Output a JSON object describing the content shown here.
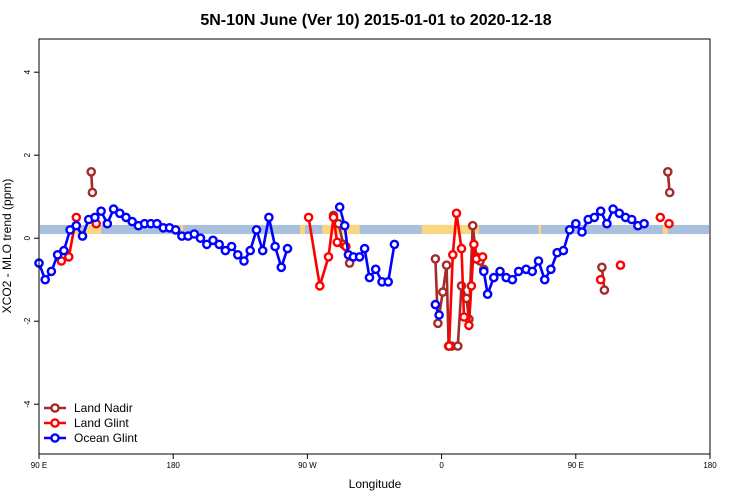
{
  "chart_data": {
    "type": "line",
    "title": "5N-10N June (Ver 10)   2015-01-01 to 2020-12-18",
    "xlabel": "Longitude",
    "ylabel": "XCO2 - MLO trend (ppm)",
    "xlim": [
      -90,
      180
    ],
    "ylim": [
      -5.2,
      4.8
    ],
    "x_ticks": [
      {
        "value": -90,
        "label": "90 E"
      },
      {
        "value": -36,
        "label": "180"
      },
      {
        "value": 18,
        "label": "90 W"
      },
      {
        "value": 72,
        "label": "0"
      },
      {
        "value": 126,
        "label": "90 E"
      },
      {
        "value": 180,
        "label": "180"
      }
    ],
    "y_ticks": [
      -4,
      -2,
      0,
      2,
      4
    ],
    "band": {
      "y_range": [
        0.1,
        0.32
      ],
      "color": "#a9c0dc",
      "highlight_color": "#fdd77a",
      "highlight_ranges": [
        [
          -76,
          -73
        ],
        [
          -71,
          -65
        ],
        [
          -34,
          -32
        ],
        [
          15,
          17
        ],
        [
          24,
          39
        ],
        [
          64,
          87
        ],
        [
          111,
          112
        ],
        [
          161,
          163
        ]
      ]
    },
    "legend": {
      "position": "bottom-left"
    },
    "series": [
      {
        "name": "Land Nadir",
        "color": "#a52a2a",
        "segments": [
          [
            [
              -69,
              1.6
            ],
            [
              -68.5,
              1.1
            ]
          ],
          [
            [
              28.5,
              0.55
            ],
            [
              30.5,
              0.35
            ],
            [
              32.5,
              -0.15
            ],
            [
              35,
              -0.6
            ]
          ],
          [
            [
              69.5,
              -0.5
            ],
            [
              70.5,
              -2.05
            ],
            [
              72.5,
              -1.3
            ],
            [
              74,
              -0.65
            ],
            [
              74.8,
              -2.6
            ],
            [
              76,
              -2.6
            ],
            [
              78.5,
              -2.6
            ],
            [
              80,
              -1.15
            ],
            [
              82,
              -1.45
            ],
            [
              83,
              -1.95
            ],
            [
              84.5,
              0.3
            ],
            [
              86,
              -0.45
            ],
            [
              87.5,
              -0.55
            ],
            [
              89,
              -0.75
            ]
          ],
          [
            [
              136.5,
              -0.7
            ],
            [
              137.5,
              -1.25
            ]
          ],
          [
            [
              163,
              1.6
            ],
            [
              163.8,
              1.1
            ]
          ]
        ]
      },
      {
        "name": "Land Glint",
        "color": "#ff0000",
        "segments": [
          [
            [
              -81,
              -0.55
            ],
            [
              -78,
              -0.45
            ],
            [
              -75,
              0.5
            ]
          ],
          [
            [
              -67,
              0.35
            ]
          ],
          [
            [
              18.5,
              0.5
            ],
            [
              23,
              -1.15
            ],
            [
              26.5,
              -0.45
            ],
            [
              28.5,
              0.5
            ],
            [
              30,
              -0.1
            ],
            [
              33.5,
              -0.2
            ]
          ],
          [
            [
              75,
              -2.6
            ],
            [
              76.5,
              -0.4
            ],
            [
              78,
              0.6
            ],
            [
              80,
              -0.25
            ],
            [
              81,
              -1.9
            ],
            [
              83,
              -2.1
            ],
            [
              84,
              -1.15
            ],
            [
              85,
              -0.15
            ],
            [
              86,
              -0.5
            ],
            [
              88.5,
              -0.45
            ]
          ],
          [
            [
              136,
              -1.0
            ]
          ],
          [
            [
              144,
              -0.65
            ]
          ],
          [
            [
              160,
              0.5
            ]
          ],
          [
            [
              163.5,
              0.35
            ]
          ]
        ]
      },
      {
        "name": "Ocean Glint",
        "color": "#0000ff",
        "segments": [
          [
            [
              -90,
              -0.6
            ],
            [
              -87.5,
              -1.0
            ],
            [
              -85,
              -0.8
            ],
            [
              -82.5,
              -0.4
            ],
            [
              -80,
              -0.3
            ],
            [
              -77.5,
              0.2
            ],
            [
              -75,
              0.3
            ],
            [
              -72.5,
              0.05
            ],
            [
              -70,
              0.45
            ],
            [
              -67.5,
              0.5
            ],
            [
              -65,
              0.65
            ],
            [
              -62.5,
              0.35
            ],
            [
              -60,
              0.7
            ],
            [
              -57.5,
              0.6
            ],
            [
              -55,
              0.5
            ],
            [
              -52.5,
              0.4
            ],
            [
              -50,
              0.3
            ],
            [
              -47.5,
              0.35
            ],
            [
              -45,
              0.35
            ],
            [
              -42.5,
              0.35
            ],
            [
              -40,
              0.25
            ],
            [
              -37.5,
              0.25
            ],
            [
              -35,
              0.2
            ],
            [
              -32.5,
              0.05
            ],
            [
              -30,
              0.05
            ],
            [
              -27.5,
              0.1
            ],
            [
              -25,
              0.0
            ],
            [
              -22.5,
              -0.15
            ],
            [
              -20,
              -0.05
            ],
            [
              -17.5,
              -0.15
            ],
            [
              -15,
              -0.3
            ],
            [
              -12.5,
              -0.2
            ],
            [
              -10,
              -0.4
            ],
            [
              -7.5,
              -0.55
            ],
            [
              -5,
              -0.3
            ],
            [
              -2.5,
              0.2
            ],
            [
              0,
              -0.3
            ],
            [
              2.5,
              0.5
            ],
            [
              5,
              -0.2
            ],
            [
              7.5,
              -0.7
            ],
            [
              10,
              -0.25
            ]
          ],
          [
            [
              31,
              0.75
            ],
            [
              33,
              0.3
            ],
            [
              34.5,
              -0.4
            ],
            [
              36.5,
              -0.45
            ],
            [
              39,
              -0.45
            ],
            [
              41,
              -0.25
            ],
            [
              43,
              -0.95
            ],
            [
              45.5,
              -0.75
            ],
            [
              48,
              -1.05
            ],
            [
              50.5,
              -1.05
            ],
            [
              53,
              -0.15
            ]
          ],
          [
            [
              69.5,
              -1.6
            ],
            [
              71,
              -1.85
            ]
          ],
          [
            [
              89,
              -0.8
            ],
            [
              90.5,
              -1.35
            ],
            [
              93,
              -0.95
            ],
            [
              95.5,
              -0.8
            ],
            [
              98,
              -0.95
            ],
            [
              100.5,
              -1.0
            ],
            [
              103,
              -0.8
            ],
            [
              106,
              -0.75
            ],
            [
              108.5,
              -0.8
            ],
            [
              111,
              -0.55
            ],
            [
              113.5,
              -1.0
            ],
            [
              116,
              -0.75
            ],
            [
              118.5,
              -0.35
            ],
            [
              121,
              -0.3
            ],
            [
              123.5,
              0.2
            ],
            [
              126,
              0.35
            ],
            [
              128.5,
              0.15
            ],
            [
              131,
              0.45
            ],
            [
              133.5,
              0.5
            ],
            [
              136,
              0.65
            ],
            [
              138.5,
              0.35
            ],
            [
              141,
              0.7
            ],
            [
              143.5,
              0.6
            ],
            [
              146,
              0.5
            ],
            [
              148.5,
              0.45
            ],
            [
              151,
              0.3
            ],
            [
              153.5,
              0.35
            ]
          ]
        ]
      }
    ]
  }
}
